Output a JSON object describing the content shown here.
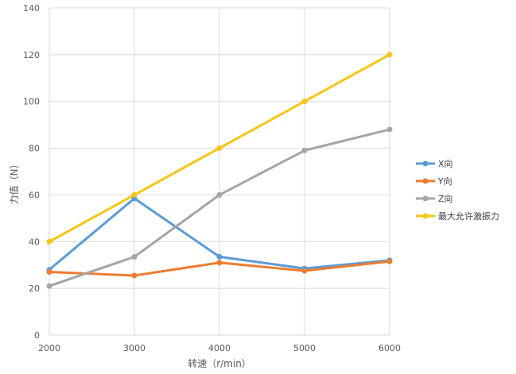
{
  "chart_data": {
    "type": "line",
    "title": "",
    "xlabel": "转速（r/min）",
    "ylabel": "力值（N）",
    "x": [
      2000,
      3000,
      4000,
      5000,
      6000
    ],
    "xlim": [
      2000,
      6000
    ],
    "ylim": [
      0,
      140
    ],
    "yticks": [
      0,
      20,
      40,
      60,
      80,
      100,
      120,
      140
    ],
    "grid": true,
    "legend_position": "right",
    "series": [
      {
        "name": "X向",
        "color": "#5b9bd5",
        "values": [
          28,
          58.5,
          33.5,
          28.5,
          32
        ]
      },
      {
        "name": "Y向",
        "color": "#ed7d31",
        "values": [
          27,
          25.5,
          31,
          27.5,
          31.5
        ]
      },
      {
        "name": "Z向",
        "color": "#a5a5a5",
        "values": [
          21,
          33.5,
          60,
          79,
          88
        ]
      },
      {
        "name": "最大允许激振力",
        "color": "#f5c518",
        "values": [
          40,
          60,
          80,
          100,
          120
        ]
      }
    ]
  }
}
